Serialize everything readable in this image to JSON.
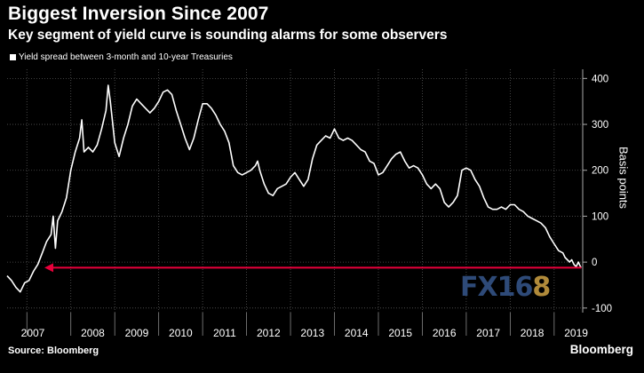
{
  "header": {
    "title": "Biggest Inversion Since 2007",
    "subtitle": "Key segment of yield curve is sounding alarms for some observers"
  },
  "footer": {
    "source": "Source: Bloomberg",
    "brand": "Bloomberg"
  },
  "watermark": {
    "text": "FX16",
    "accent": "8"
  },
  "colors": {
    "background": "#000000",
    "line": "#ffffff",
    "arrow": "#e8003b",
    "grid": "#555555"
  },
  "chart_data": {
    "type": "line",
    "title": "Biggest Inversion Since 2007",
    "ylabel": "Basis points",
    "ylim": [
      -110,
      420
    ],
    "xlim": [
      2006.55,
      2019.65
    ],
    "y_ticks": [
      -100,
      0,
      100,
      200,
      300,
      400
    ],
    "x_tick_labels": [
      "2007",
      "2008",
      "2009",
      "2010",
      "2011",
      "2012",
      "2013",
      "2014",
      "2015",
      "2016",
      "2017",
      "2018",
      "2019"
    ],
    "grid": true,
    "legend_position": "top-left",
    "series": [
      {
        "name": "Yield spread between 3-month and 10-year Treasuries",
        "points": [
          [
            2006.55,
            -30
          ],
          [
            2006.65,
            -40
          ],
          [
            2006.75,
            -55
          ],
          [
            2006.85,
            -65
          ],
          [
            2006.95,
            -45
          ],
          [
            2007.05,
            -40
          ],
          [
            2007.15,
            -20
          ],
          [
            2007.25,
            -5
          ],
          [
            2007.35,
            20
          ],
          [
            2007.45,
            45
          ],
          [
            2007.55,
            60
          ],
          [
            2007.6,
            100
          ],
          [
            2007.65,
            30
          ],
          [
            2007.7,
            90
          ],
          [
            2007.8,
            110
          ],
          [
            2007.9,
            140
          ],
          [
            2008.0,
            200
          ],
          [
            2008.1,
            240
          ],
          [
            2008.2,
            270
          ],
          [
            2008.25,
            310
          ],
          [
            2008.3,
            240
          ],
          [
            2008.4,
            250
          ],
          [
            2008.5,
            240
          ],
          [
            2008.6,
            255
          ],
          [
            2008.7,
            290
          ],
          [
            2008.8,
            330
          ],
          [
            2008.85,
            385
          ],
          [
            2008.9,
            350
          ],
          [
            2009.0,
            260
          ],
          [
            2009.1,
            230
          ],
          [
            2009.2,
            270
          ],
          [
            2009.3,
            300
          ],
          [
            2009.4,
            340
          ],
          [
            2009.5,
            355
          ],
          [
            2009.6,
            345
          ],
          [
            2009.7,
            335
          ],
          [
            2009.8,
            325
          ],
          [
            2009.9,
            335
          ],
          [
            2010.0,
            350
          ],
          [
            2010.1,
            370
          ],
          [
            2010.2,
            375
          ],
          [
            2010.3,
            365
          ],
          [
            2010.4,
            330
          ],
          [
            2010.5,
            300
          ],
          [
            2010.6,
            270
          ],
          [
            2010.7,
            245
          ],
          [
            2010.8,
            270
          ],
          [
            2010.9,
            310
          ],
          [
            2011.0,
            345
          ],
          [
            2011.1,
            345
          ],
          [
            2011.2,
            335
          ],
          [
            2011.3,
            320
          ],
          [
            2011.4,
            300
          ],
          [
            2011.5,
            285
          ],
          [
            2011.6,
            260
          ],
          [
            2011.7,
            210
          ],
          [
            2011.8,
            195
          ],
          [
            2011.9,
            190
          ],
          [
            2012.0,
            195
          ],
          [
            2012.1,
            200
          ],
          [
            2012.2,
            210
          ],
          [
            2012.25,
            220
          ],
          [
            2012.3,
            200
          ],
          [
            2012.4,
            170
          ],
          [
            2012.5,
            150
          ],
          [
            2012.6,
            145
          ],
          [
            2012.7,
            160
          ],
          [
            2012.8,
            165
          ],
          [
            2012.9,
            170
          ],
          [
            2013.0,
            185
          ],
          [
            2013.1,
            195
          ],
          [
            2013.2,
            180
          ],
          [
            2013.3,
            165
          ],
          [
            2013.4,
            180
          ],
          [
            2013.5,
            225
          ],
          [
            2013.6,
            255
          ],
          [
            2013.7,
            265
          ],
          [
            2013.8,
            275
          ],
          [
            2013.9,
            270
          ],
          [
            2014.0,
            290
          ],
          [
            2014.1,
            270
          ],
          [
            2014.2,
            265
          ],
          [
            2014.3,
            270
          ],
          [
            2014.4,
            265
          ],
          [
            2014.5,
            255
          ],
          [
            2014.6,
            245
          ],
          [
            2014.7,
            240
          ],
          [
            2014.8,
            220
          ],
          [
            2014.9,
            215
          ],
          [
            2015.0,
            190
          ],
          [
            2015.1,
            195
          ],
          [
            2015.2,
            210
          ],
          [
            2015.3,
            225
          ],
          [
            2015.4,
            235
          ],
          [
            2015.5,
            240
          ],
          [
            2015.6,
            220
          ],
          [
            2015.7,
            205
          ],
          [
            2015.8,
            210
          ],
          [
            2015.9,
            205
          ],
          [
            2016.0,
            190
          ],
          [
            2016.1,
            170
          ],
          [
            2016.2,
            160
          ],
          [
            2016.3,
            170
          ],
          [
            2016.4,
            160
          ],
          [
            2016.5,
            130
          ],
          [
            2016.6,
            120
          ],
          [
            2016.7,
            130
          ],
          [
            2016.8,
            145
          ],
          [
            2016.9,
            200
          ],
          [
            2017.0,
            205
          ],
          [
            2017.1,
            200
          ],
          [
            2017.2,
            180
          ],
          [
            2017.3,
            165
          ],
          [
            2017.4,
            140
          ],
          [
            2017.5,
            120
          ],
          [
            2017.6,
            115
          ],
          [
            2017.7,
            115
          ],
          [
            2017.8,
            120
          ],
          [
            2017.9,
            115
          ],
          [
            2018.0,
            125
          ],
          [
            2018.1,
            125
          ],
          [
            2018.2,
            115
          ],
          [
            2018.3,
            110
          ],
          [
            2018.4,
            100
          ],
          [
            2018.5,
            95
          ],
          [
            2018.6,
            90
          ],
          [
            2018.7,
            85
          ],
          [
            2018.8,
            75
          ],
          [
            2018.9,
            55
          ],
          [
            2019.0,
            40
          ],
          [
            2019.1,
            25
          ],
          [
            2019.2,
            20
          ],
          [
            2019.25,
            10
          ],
          [
            2019.3,
            5
          ],
          [
            2019.35,
            0
          ],
          [
            2019.4,
            5
          ],
          [
            2019.45,
            -5
          ],
          [
            2019.5,
            -10
          ],
          [
            2019.55,
            0
          ],
          [
            2019.6,
            -10
          ],
          [
            2019.62,
            -12
          ]
        ]
      }
    ],
    "annotations": [
      {
        "type": "arrow",
        "from": [
          2019.62,
          -12
        ],
        "to": [
          2007.4,
          -12
        ]
      }
    ]
  }
}
